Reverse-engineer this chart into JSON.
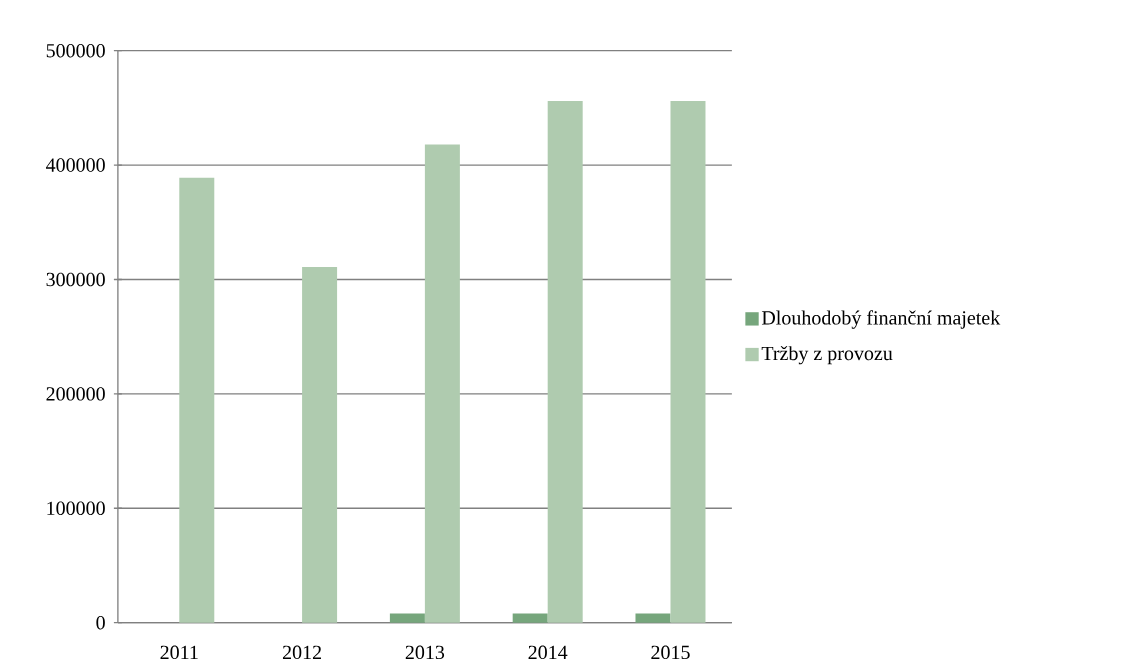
{
  "chart_data": {
    "type": "bar",
    "categories": [
      "2011",
      "2012",
      "2013",
      "2014",
      "2015"
    ],
    "series": [
      {
        "name": "Dlouhodobý finanční majetek",
        "color": "#76a67c",
        "values": [
          null,
          null,
          8000,
          8000,
          8000
        ]
      },
      {
        "name": "Tržby z provozu",
        "color": "#afcbaf",
        "values": [
          389000,
          311000,
          418000,
          456000,
          456000
        ]
      }
    ],
    "ylim": [
      0,
      500000
    ],
    "yticks": [
      0,
      100000,
      200000,
      300000,
      400000,
      500000
    ],
    "grid": "y",
    "legend": "right"
  }
}
